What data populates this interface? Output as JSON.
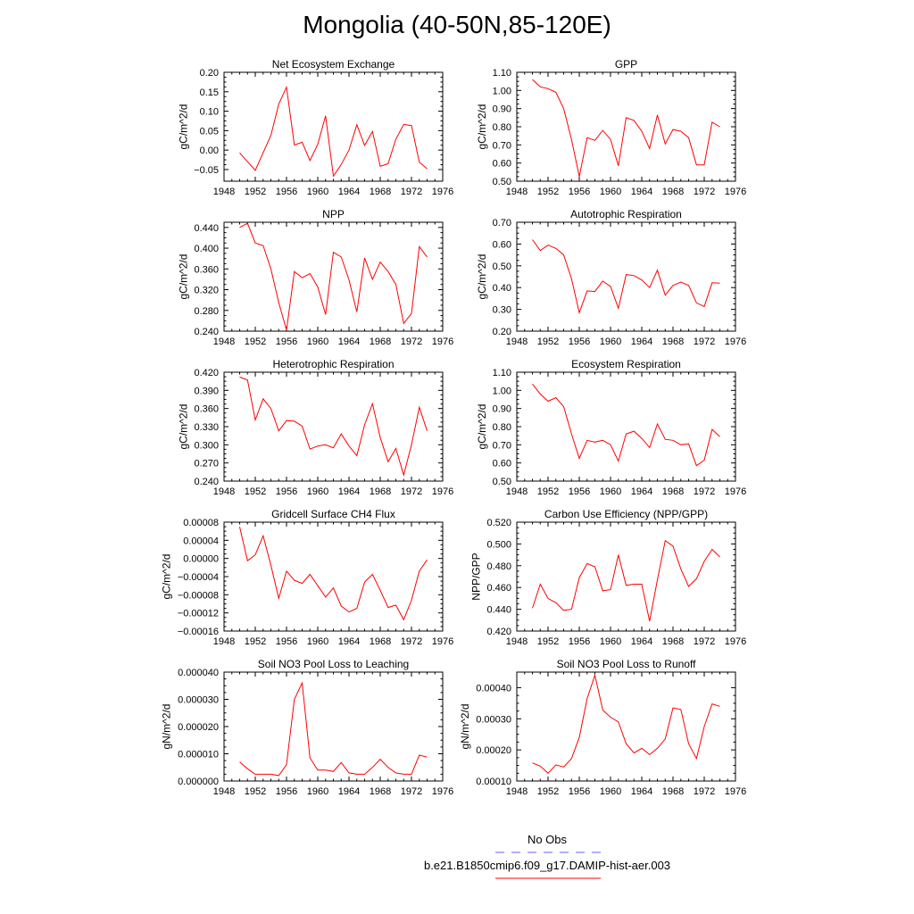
{
  "title": "Mongolia (40-50N,85-120E)",
  "legend": [
    {
      "label": "No Obs",
      "color": "#6666ff",
      "dash": true
    },
    {
      "label": "b.e21.B1850cmip6.f09_g17.DAMIP-hist-aer.003",
      "color": "#ff0000",
      "dash": false
    }
  ],
  "chart_data": [
    {
      "type": "line",
      "title": "Net Ecosystem Exchange",
      "xlabel": "",
      "ylabel": "gC/m^2/d",
      "xlim": [
        1948,
        1976
      ],
      "xticks": [
        1948,
        1952,
        1956,
        1960,
        1964,
        1968,
        1972,
        1976
      ],
      "ylim": [
        -0.08,
        0.2
      ],
      "yticks": [
        -0.05,
        0.0,
        0.05,
        0.1,
        0.15,
        0.2
      ],
      "ytick_labels": [
        "−0.05",
        "0.00",
        "0.05",
        "0.10",
        "0.15",
        "0.20"
      ],
      "series": [
        {
          "color": "#ff0000",
          "x": [
            1950,
            1951,
            1952,
            1953,
            1954,
            1955,
            1956,
            1957,
            1958,
            1959,
            1960,
            1961,
            1962,
            1963,
            1964,
            1965,
            1966,
            1967,
            1968,
            1969,
            1970,
            1971,
            1972,
            1973,
            1974
          ],
          "values": [
            -0.007,
            -0.03,
            -0.052,
            -0.007,
            0.038,
            0.118,
            0.162,
            0.013,
            0.02,
            -0.027,
            0.015,
            0.088,
            -0.067,
            -0.037,
            0.0,
            0.065,
            0.012,
            0.048,
            -0.042,
            -0.035,
            0.028,
            0.066,
            0.063,
            -0.031,
            -0.048
          ]
        }
      ]
    },
    {
      "type": "line",
      "title": "GPP",
      "xlabel": "",
      "ylabel": "gC/m^2/d",
      "xlim": [
        1948,
        1976
      ],
      "xticks": [
        1948,
        1952,
        1956,
        1960,
        1964,
        1968,
        1972,
        1976
      ],
      "ylim": [
        0.5,
        1.1
      ],
      "yticks": [
        0.5,
        0.6,
        0.7,
        0.8,
        0.9,
        1.0,
        1.1
      ],
      "ytick_labels": [
        "0.50",
        "0.60",
        "0.70",
        "0.80",
        "0.90",
        "1.00",
        "1.10"
      ],
      "series": [
        {
          "color": "#ff0000",
          "x": [
            1950,
            1951,
            1952,
            1953,
            1954,
            1955,
            1956,
            1957,
            1958,
            1959,
            1960,
            1961,
            1962,
            1963,
            1964,
            1965,
            1966,
            1967,
            1968,
            1969,
            1970,
            1971,
            1972,
            1973,
            1974
          ],
          "values": [
            1.06,
            1.02,
            1.01,
            0.99,
            0.9,
            0.73,
            0.525,
            0.74,
            0.725,
            0.78,
            0.73,
            0.585,
            0.85,
            0.835,
            0.775,
            0.68,
            0.865,
            0.705,
            0.785,
            0.775,
            0.74,
            0.59,
            0.59,
            0.825,
            0.8
          ]
        }
      ]
    },
    {
      "type": "line",
      "title": "NPP",
      "xlabel": "",
      "ylabel": "gC/m^2/d",
      "xlim": [
        1948,
        1976
      ],
      "xticks": [
        1948,
        1952,
        1956,
        1960,
        1964,
        1968,
        1972,
        1976
      ],
      "ylim": [
        0.24,
        0.45
      ],
      "yticks": [
        0.24,
        0.28,
        0.32,
        0.36,
        0.4,
        0.44
      ],
      "ytick_labels": [
        "0.240",
        "0.280",
        "0.320",
        "0.360",
        "0.400",
        "0.440"
      ],
      "series": [
        {
          "color": "#ff0000",
          "x": [
            1950,
            1951,
            1952,
            1953,
            1954,
            1955,
            1956,
            1957,
            1958,
            1959,
            1960,
            1961,
            1962,
            1963,
            1964,
            1965,
            1966,
            1967,
            1968,
            1969,
            1970,
            1971,
            1972,
            1973,
            1974
          ],
          "values": [
            0.44,
            0.448,
            0.41,
            0.405,
            0.36,
            0.295,
            0.242,
            0.355,
            0.343,
            0.351,
            0.325,
            0.272,
            0.392,
            0.383,
            0.339,
            0.277,
            0.381,
            0.34,
            0.373,
            0.355,
            0.33,
            0.255,
            0.274,
            0.403,
            0.383
          ]
        }
      ]
    },
    {
      "type": "line",
      "title": "Autotrophic Respiration",
      "xlabel": "",
      "ylabel": "gC/m^2/d",
      "xlim": [
        1948,
        1976
      ],
      "xticks": [
        1948,
        1952,
        1956,
        1960,
        1964,
        1968,
        1972,
        1976
      ],
      "ylim": [
        0.2,
        0.7
      ],
      "yticks": [
        0.2,
        0.3,
        0.4,
        0.5,
        0.6,
        0.7
      ],
      "ytick_labels": [
        "0.20",
        "0.30",
        "0.40",
        "0.50",
        "0.60",
        "0.70"
      ],
      "series": [
        {
          "color": "#ff0000",
          "x": [
            1950,
            1951,
            1952,
            1953,
            1954,
            1955,
            1956,
            1957,
            1958,
            1959,
            1960,
            1961,
            1962,
            1963,
            1964,
            1965,
            1966,
            1967,
            1968,
            1969,
            1970,
            1971,
            1972,
            1973,
            1974
          ],
          "values": [
            0.62,
            0.57,
            0.595,
            0.58,
            0.55,
            0.44,
            0.285,
            0.385,
            0.382,
            0.43,
            0.405,
            0.305,
            0.46,
            0.455,
            0.435,
            0.4,
            0.48,
            0.365,
            0.41,
            0.425,
            0.41,
            0.33,
            0.313,
            0.422,
            0.42
          ]
        }
      ]
    },
    {
      "type": "line",
      "title": "Heterotrophic Respiration",
      "xlabel": "",
      "ylabel": "gC/m^2/d",
      "xlim": [
        1948,
        1976
      ],
      "xticks": [
        1948,
        1952,
        1956,
        1960,
        1964,
        1968,
        1972,
        1976
      ],
      "ylim": [
        0.24,
        0.42
      ],
      "yticks": [
        0.24,
        0.27,
        0.3,
        0.33,
        0.36,
        0.39,
        0.42
      ],
      "ytick_labels": [
        "0.240",
        "0.270",
        "0.300",
        "0.330",
        "0.360",
        "0.390",
        "0.420"
      ],
      "series": [
        {
          "color": "#ff0000",
          "x": [
            1950,
            1951,
            1952,
            1953,
            1954,
            1955,
            1956,
            1957,
            1958,
            1959,
            1960,
            1961,
            1962,
            1963,
            1964,
            1965,
            1966,
            1967,
            1968,
            1969,
            1970,
            1971,
            1972,
            1973,
            1974
          ],
          "values": [
            0.412,
            0.407,
            0.341,
            0.376,
            0.36,
            0.323,
            0.34,
            0.339,
            0.331,
            0.293,
            0.298,
            0.3,
            0.295,
            0.318,
            0.298,
            0.282,
            0.333,
            0.368,
            0.312,
            0.272,
            0.294,
            0.25,
            0.3,
            0.362,
            0.323
          ]
        }
      ]
    },
    {
      "type": "line",
      "title": "Ecosystem Respiration",
      "xlabel": "",
      "ylabel": "gC/m^2/d",
      "xlim": [
        1948,
        1976
      ],
      "xticks": [
        1948,
        1952,
        1956,
        1960,
        1964,
        1968,
        1972,
        1976
      ],
      "ylim": [
        0.5,
        1.1
      ],
      "yticks": [
        0.5,
        0.6,
        0.7,
        0.8,
        0.9,
        1.0,
        1.1
      ],
      "ytick_labels": [
        "0.50",
        "0.60",
        "0.70",
        "0.80",
        "0.90",
        "1.00",
        "1.10"
      ],
      "series": [
        {
          "color": "#ff0000",
          "x": [
            1950,
            1951,
            1952,
            1953,
            1954,
            1955,
            1956,
            1957,
            1958,
            1959,
            1960,
            1961,
            1962,
            1963,
            1964,
            1965,
            1966,
            1967,
            1968,
            1969,
            1970,
            1971,
            1972,
            1973,
            1974
          ],
          "values": [
            1.035,
            0.98,
            0.94,
            0.96,
            0.91,
            0.76,
            0.625,
            0.725,
            0.715,
            0.725,
            0.7,
            0.61,
            0.76,
            0.775,
            0.735,
            0.685,
            0.815,
            0.73,
            0.725,
            0.7,
            0.705,
            0.585,
            0.615,
            0.785,
            0.745
          ]
        }
      ]
    },
    {
      "type": "line",
      "title": "Gridcell Surface CH4 Flux",
      "xlabel": "",
      "ylabel": "gC/m^2/d",
      "xlim": [
        1948,
        1976
      ],
      "xticks": [
        1948,
        1952,
        1956,
        1960,
        1964,
        1968,
        1972,
        1976
      ],
      "ylim": [
        -0.00016,
        8e-05
      ],
      "yticks": [
        -0.00016,
        -0.00012,
        -8e-05,
        -4e-05,
        0.0,
        4e-05,
        8e-05
      ],
      "ytick_labels": [
        "−0.00016",
        "−0.00012",
        "−0.00008",
        "−0.00004",
        "0.00000",
        "0.00004",
        "0.00008"
      ],
      "series": [
        {
          "color": "#ff0000",
          "x": [
            1950,
            1951,
            1952,
            1953,
            1954,
            1955,
            1956,
            1957,
            1958,
            1959,
            1960,
            1961,
            1962,
            1963,
            1964,
            1965,
            1966,
            1967,
            1968,
            1969,
            1970,
            1971,
            1972,
            1973,
            1974
          ],
          "values": [
            7e-05,
            -5e-06,
            8e-06,
            5e-05,
            -1.5e-05,
            -8.8e-05,
            -2.8e-05,
            -4.8e-05,
            -5.5e-05,
            -3.5e-05,
            -6e-05,
            -8.5e-05,
            -6.5e-05,
            -0.000105,
            -0.000118,
            -0.00011,
            -5.2e-05,
            -3.5e-05,
            -7e-05,
            -0.000108,
            -0.000103,
            -0.000135,
            -9.2e-05,
            -2.8e-05,
            -3e-06
          ]
        }
      ]
    },
    {
      "type": "line",
      "title": "Carbon Use Efficiency (NPP/GPP)",
      "xlabel": "",
      "ylabel": "NPP/GPP",
      "xlim": [
        1948,
        1976
      ],
      "xticks": [
        1948,
        1952,
        1956,
        1960,
        1964,
        1968,
        1972,
        1976
      ],
      "ylim": [
        0.42,
        0.52
      ],
      "yticks": [
        0.42,
        0.44,
        0.46,
        0.48,
        0.5,
        0.52
      ],
      "ytick_labels": [
        "0.420",
        "0.440",
        "0.460",
        "0.480",
        "0.500",
        "0.520"
      ],
      "series": [
        {
          "color": "#ff0000",
          "x": [
            1950,
            1951,
            1952,
            1953,
            1954,
            1955,
            1956,
            1957,
            1958,
            1959,
            1960,
            1961,
            1962,
            1963,
            1964,
            1965,
            1966,
            1967,
            1968,
            1969,
            1970,
            1971,
            1972,
            1973,
            1974
          ],
          "values": [
            0.441,
            0.463,
            0.45,
            0.446,
            0.439,
            0.44,
            0.469,
            0.482,
            0.479,
            0.457,
            0.458,
            0.49,
            0.462,
            0.463,
            0.463,
            0.429,
            0.467,
            0.503,
            0.498,
            0.477,
            0.461,
            0.468,
            0.484,
            0.495,
            0.488
          ]
        }
      ]
    },
    {
      "type": "line",
      "title": "Soil NO3 Pool Loss to Leaching",
      "xlabel": "",
      "ylabel": "gN/m^2/d",
      "xlim": [
        1948,
        1976
      ],
      "xticks": [
        1948,
        1952,
        1956,
        1960,
        1964,
        1968,
        1972,
        1976
      ],
      "ylim": [
        0.0,
        4e-05
      ],
      "yticks": [
        0.0,
        1e-05,
        2e-05,
        3e-05,
        4e-05
      ],
      "ytick_labels": [
        "0.000000",
        "0.000010",
        "0.000020",
        "0.000030",
        "0.000040"
      ],
      "series": [
        {
          "color": "#ff0000",
          "x": [
            1950,
            1951,
            1952,
            1953,
            1954,
            1955,
            1956,
            1957,
            1958,
            1959,
            1960,
            1961,
            1962,
            1963,
            1964,
            1965,
            1966,
            1967,
            1968,
            1969,
            1970,
            1971,
            1972,
            1973,
            1974
          ],
          "values": [
            7e-06,
            4.5e-06,
            2.5e-06,
            2.5e-06,
            2.5e-06,
            2e-06,
            6e-06,
            3e-05,
            3.6e-05,
            8.5e-06,
            4e-06,
            4e-06,
            3.5e-06,
            6.8e-06,
            3e-06,
            2.5e-06,
            2.5e-06,
            5e-06,
            8e-06,
            5e-06,
            3e-06,
            2.5e-06,
            2.5e-06,
            9.5e-06,
            8.8e-06
          ]
        }
      ]
    },
    {
      "type": "line",
      "title": "Soil NO3 Pool Loss to Runoff",
      "xlabel": "",
      "ylabel": "gN/m^2/d",
      "xlim": [
        1948,
        1976
      ],
      "xticks": [
        1948,
        1952,
        1956,
        1960,
        1964,
        1968,
        1972,
        1976
      ],
      "ylim": [
        0.0001,
        0.00045
      ],
      "yticks": [
        0.0001,
        0.0002,
        0.0003,
        0.0004
      ],
      "ytick_labels": [
        "0.00010",
        "0.00020",
        "0.00030",
        "0.00040"
      ],
      "series": [
        {
          "color": "#ff0000",
          "x": [
            1950,
            1951,
            1952,
            1953,
            1954,
            1955,
            1956,
            1957,
            1958,
            1959,
            1960,
            1961,
            1962,
            1963,
            1964,
            1965,
            1966,
            1967,
            1968,
            1969,
            1970,
            1971,
            1972,
            1973,
            1974
          ],
          "values": [
            0.000158,
            0.000148,
            0.000125,
            0.000152,
            0.000145,
            0.000172,
            0.00024,
            0.000365,
            0.00044,
            0.000328,
            0.000305,
            0.00029,
            0.00022,
            0.00019,
            0.000205,
            0.000185,
            0.000205,
            0.000235,
            0.000335,
            0.00033,
            0.00022,
            0.000172,
            0.000275,
            0.000348,
            0.00034
          ]
        }
      ]
    }
  ]
}
